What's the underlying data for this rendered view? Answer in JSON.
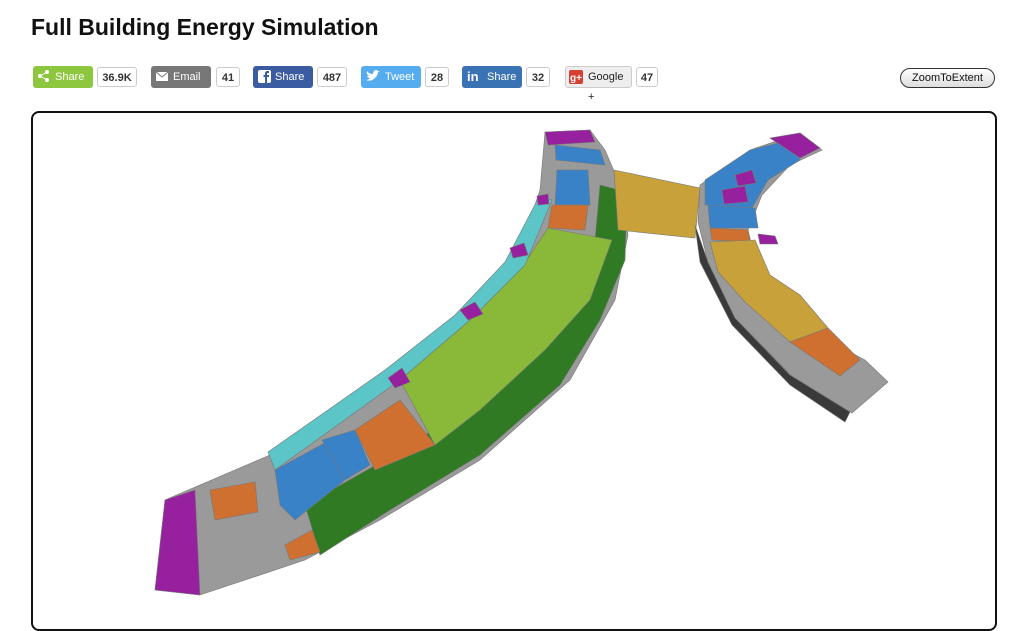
{
  "header": {
    "title": "Full Building Energy Simulation"
  },
  "share_buttons": [
    {
      "label": "Share",
      "count": "36.9K"
    },
    {
      "label": "Email",
      "count": 41
    },
    {
      "label": "Share",
      "count": 487
    },
    {
      "label": "Tweet",
      "count": 28
    },
    {
      "label": "Share",
      "count": 32
    },
    {
      "label": "Google +",
      "count": 47
    }
  ],
  "zoom_button": {
    "label": "ZoomToExtent"
  }
}
